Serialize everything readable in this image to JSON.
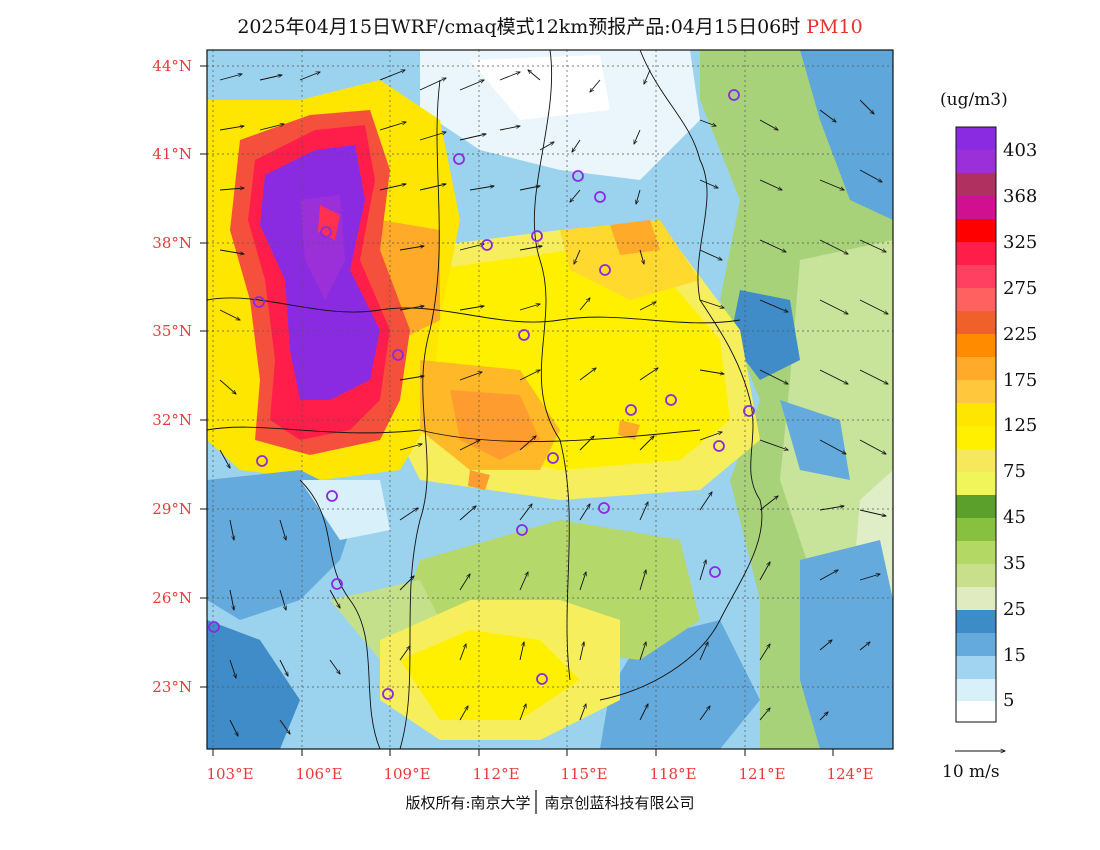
{
  "title": {
    "main": "2025年04月15日WRF/cmaq模式12km预报产品:04月15日06时",
    "pollutant": "PM10"
  },
  "axes": {
    "lat_labels": [
      "44°N",
      "41°N",
      "38°N",
      "35°N",
      "32°N",
      "29°N",
      "26°N",
      "23°N"
    ],
    "lat_values": [
      44,
      41,
      38,
      35,
      32,
      29,
      26,
      23
    ],
    "lon_labels": [
      "103°E",
      "106°E",
      "109°E",
      "112°E",
      "115°E",
      "118°E",
      "121°E",
      "124°E"
    ],
    "lon_values": [
      103,
      106,
      109,
      112,
      115,
      118,
      121,
      124
    ],
    "lat_range": [
      21,
      44.5
    ],
    "lon_range": [
      102.8,
      125.5
    ]
  },
  "legend": {
    "unit": "(ug/m3)",
    "labels": [
      "403",
      "368",
      "325",
      "275",
      "225",
      "175",
      "125",
      "75",
      "45",
      "35",
      "25",
      "15",
      "5"
    ],
    "colors": [
      "#8a2be2",
      "#9b30d9",
      "#b03060",
      "#d01090",
      "#ff0000",
      "#ff3050",
      "#ff6060",
      "#f0602a",
      "#ff8c00",
      "#ffaa28",
      "#ffc83c",
      "#ffe600",
      "#fff000",
      "#f5e85a",
      "#f0f55a",
      "#5aa02a",
      "#88c040",
      "#b4d864",
      "#c8e08c",
      "#e0ecc0",
      "#3c8cc8",
      "#64aadc",
      "#a0d4f0",
      "#d8f0fa",
      "#ffffff"
    ],
    "wind_speed": "10 m/s"
  },
  "copyright": {
    "left": "版权所有:南京大学",
    "right": "南京创蓝科技有限公司"
  }
}
